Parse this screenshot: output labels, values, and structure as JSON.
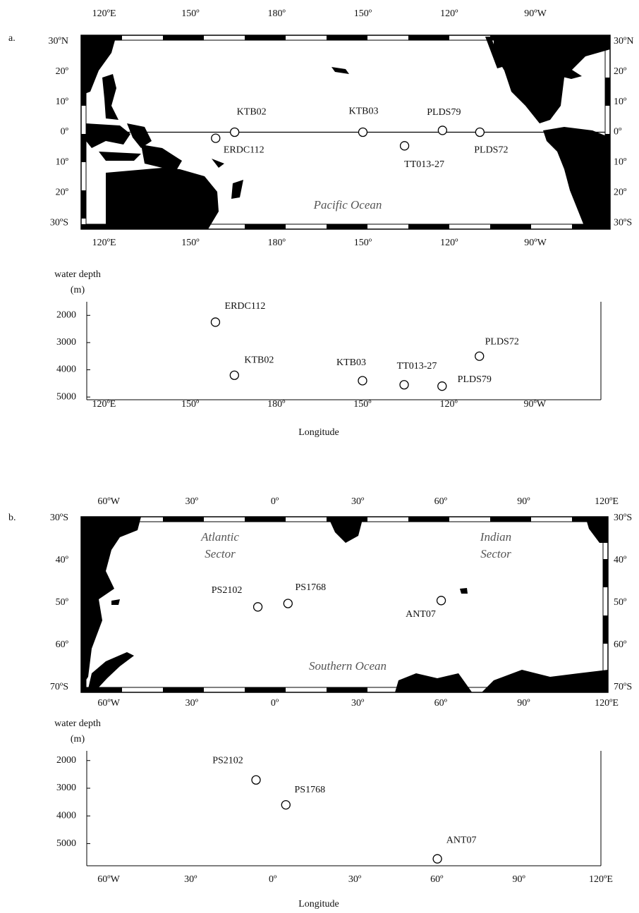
{
  "chart_data": [
    {
      "type": "map",
      "panel_label": "a.",
      "xlim": [
        112,
        296
      ],
      "ylim": [
        -32,
        32
      ],
      "xticks": [
        {
          "value": 120,
          "label": "120ºE"
        },
        {
          "value": 150,
          "label": "150º"
        },
        {
          "value": 180,
          "label": "180º"
        },
        {
          "value": 210,
          "label": "150º"
        },
        {
          "value": 240,
          "label": "120º"
        },
        {
          "value": 270,
          "label": "90ºW"
        }
      ],
      "yticks": [
        {
          "value": 30,
          "label": "30ºN"
        },
        {
          "value": 20,
          "label": "20º"
        },
        {
          "value": 10,
          "label": "10º"
        },
        {
          "value": 0,
          "label": "0º"
        },
        {
          "value": -10,
          "label": "10º"
        },
        {
          "value": -20,
          "label": "20º"
        },
        {
          "value": -30,
          "label": "30ºS"
        }
      ],
      "reference_line": 0,
      "annotations": [
        [
          "Pacific Ocean"
        ]
      ],
      "labels": [
        "KTB02",
        "ERDC112",
        "KTB03",
        "TT013-27",
        "PLDS79",
        "PLDS72"
      ],
      "x": [
        165.4,
        158.8,
        210,
        224.5,
        237.7,
        250.7
      ],
      "y": [
        0,
        -2,
        0,
        -4.5,
        0.6,
        0
      ]
    },
    {
      "type": "scatter",
      "y_label": "water depth",
      "y_unit": "(m)",
      "x_label": "Longitude",
      "xlim": [
        114,
        293
      ],
      "ylim": [
        5100,
        1500
      ],
      "xticks": [
        {
          "value": 120,
          "label": "120ºE"
        },
        {
          "value": 150,
          "label": "150º"
        },
        {
          "value": 180,
          "label": "180º"
        },
        {
          "value": 210,
          "label": "150º"
        },
        {
          "value": 240,
          "label": "120º"
        },
        {
          "value": 270,
          "label": "90ºW"
        }
      ],
      "yticks": [
        2000,
        3000,
        4000,
        5000
      ],
      "labels": [
        "KTB02",
        "ERDC112",
        "KTB03",
        "TT013-27",
        "PLDS79",
        "PLDS72"
      ],
      "x": [
        165.4,
        158.8,
        210,
        224.5,
        237.7,
        250.7
      ],
      "y": [
        4200,
        2250,
        4400,
        4550,
        4600,
        3500
      ]
    },
    {
      "type": "map",
      "panel_label": "b.",
      "xlim": [
        -70,
        120.5
      ],
      "ylim": [
        -71.2,
        -29.7
      ],
      "xticks": [
        {
          "value": -60,
          "label": "60ºW"
        },
        {
          "value": -30,
          "label": "30º"
        },
        {
          "value": 0,
          "label": "0º"
        },
        {
          "value": 30,
          "label": "30º"
        },
        {
          "value": 60,
          "label": "60º"
        },
        {
          "value": 90,
          "label": "90º"
        },
        {
          "value": 120,
          "label": "120ºE"
        }
      ],
      "yticks": [
        {
          "value": -30,
          "label": "30ºS"
        },
        {
          "value": -40,
          "label": "40º"
        },
        {
          "value": -50,
          "label": "50º"
        },
        {
          "value": -60,
          "label": "60º"
        },
        {
          "value": -70,
          "label": "70ºS"
        }
      ],
      "annotations": [
        [
          "Atlantic",
          "Sector"
        ],
        [
          "Indian",
          "Sector"
        ],
        [
          "Southern Ocean"
        ]
      ],
      "labels": [
        "PS2102",
        "PS1768",
        "ANT07"
      ],
      "x": [
        -6.1,
        4.8,
        60.2
      ],
      "y": [
        -51,
        -50.2,
        -49.5
      ]
    },
    {
      "type": "scatter",
      "y_label": "water depth",
      "y_unit": "(m)",
      "x_label": "Longitude",
      "xlim": [
        -68,
        120
      ],
      "ylim": [
        5800,
        1650
      ],
      "xticks": [
        {
          "value": -60,
          "label": "60ºW"
        },
        {
          "value": -30,
          "label": "30º"
        },
        {
          "value": 0,
          "label": "0º"
        },
        {
          "value": 30,
          "label": "30º"
        },
        {
          "value": 60,
          "label": "60º"
        },
        {
          "value": 90,
          "label": "90º"
        },
        {
          "value": 120,
          "label": "120ºE"
        }
      ],
      "yticks": [
        2000,
        3000,
        4000,
        5000
      ],
      "labels": [
        "PS2102",
        "PS1768",
        "ANT07"
      ],
      "x": [
        -6.1,
        4.8,
        60.2
      ],
      "y": [
        2700,
        3600,
        5550
      ]
    }
  ]
}
